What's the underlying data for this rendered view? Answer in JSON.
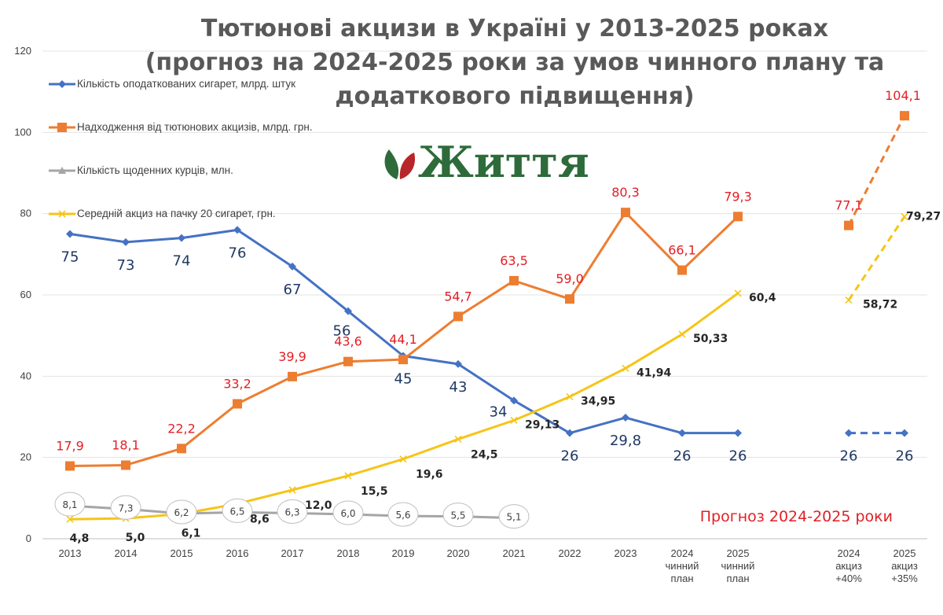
{
  "chart_data": {
    "type": "line",
    "title": [
      "Тютюнові акцизи в Україні у 2013-2025 роках",
      "(прогноз на 2024-2025 роки за умов чинного плану та",
      "додаткового підвищення)"
    ],
    "categories": [
      [
        "2013"
      ],
      [
        "2014"
      ],
      [
        "2015"
      ],
      [
        "2016"
      ],
      [
        "2017"
      ],
      [
        "2018"
      ],
      [
        "2019"
      ],
      [
        "2020"
      ],
      [
        "2021"
      ],
      [
        "2022"
      ],
      [
        "2023"
      ],
      [
        "2024",
        "чинний",
        "план"
      ],
      [
        "2025",
        "чинний",
        "план"
      ],
      [
        "2024",
        "акциз",
        "+40%"
      ],
      [
        "2025",
        "акциз",
        "+35%"
      ]
    ],
    "ylim": [
      0,
      120
    ],
    "yticks": [
      0,
      20,
      40,
      60,
      80,
      100,
      120
    ],
    "grid": true,
    "legend_position": "top-left",
    "series": [
      {
        "name": "Кількість оподаткованих сигарет, млрд. штук",
        "color": "#4472c4",
        "marker": "diamond",
        "label_style": "blue",
        "values": [
          75,
          73,
          74,
          76,
          67,
          56,
          45,
          43,
          34,
          26,
          29.8,
          26,
          26,
          null,
          null
        ],
        "labels": [
          "75",
          "73",
          "74",
          "76",
          "67",
          "56",
          "45",
          "43",
          "34",
          "26",
          "29,8",
          "26",
          "26",
          "",
          ""
        ],
        "forecast_values": [
          null,
          null,
          null,
          null,
          null,
          null,
          null,
          null,
          null,
          null,
          null,
          null,
          null,
          26,
          26
        ],
        "forecast_labels": [
          "",
          "",
          "",
          "",
          "",
          "",
          "",
          "",
          "",
          "",
          "",
          "",
          "",
          "26",
          "26"
        ]
      },
      {
        "name": "Надходження від тютюнових акцизів, млрд. грн.",
        "color": "#ed7d31",
        "marker": "square",
        "label_style": "red",
        "values": [
          17.9,
          18.1,
          22.2,
          33.2,
          39.9,
          43.6,
          44.1,
          54.7,
          63.5,
          59.0,
          80.3,
          66.1,
          79.3,
          null,
          null
        ],
        "labels": [
          "17,9",
          "18,1",
          "22,2",
          "33,2",
          "39,9",
          "43,6",
          "44,1",
          "54,7",
          "63,5",
          "59,0",
          "80,3",
          "66,1",
          "79,3",
          "",
          ""
        ],
        "forecast_values": [
          null,
          null,
          null,
          null,
          null,
          null,
          null,
          null,
          null,
          null,
          null,
          null,
          null,
          77.1,
          104.1
        ],
        "forecast_labels": [
          "",
          "",
          "",
          "",
          "",
          "",
          "",
          "",
          "",
          "",
          "",
          "",
          "",
          "77,1",
          "104,1"
        ]
      },
      {
        "name": "Кількість щоденних курців, млн.",
        "color": "#a5a5a5",
        "marker": "triangle",
        "label_style": "gray",
        "values": [
          8.1,
          7.3,
          6.2,
          6.5,
          6.3,
          6.0,
          5.6,
          5.5,
          5.1,
          null,
          null,
          null,
          null,
          null,
          null
        ],
        "labels": [
          "8,1",
          "7,3",
          "6,2",
          "6,5",
          "6,3",
          "6,0",
          "5,6",
          "5,5",
          "5,1",
          "",
          "",
          "",
          "",
          "",
          ""
        ],
        "forecast_values": null,
        "forecast_labels": null
      },
      {
        "name": "Середній акциз на пачку 20 сигарет, грн.",
        "color": "#f5c518",
        "marker": "x",
        "label_style": "dark",
        "values": [
          4.8,
          5.0,
          6.1,
          8.6,
          12.0,
          15.5,
          19.6,
          24.5,
          29.13,
          34.95,
          41.94,
          50.33,
          60.4,
          null,
          null
        ],
        "labels": [
          "4,8",
          "5,0",
          "6,1",
          "8,6",
          "12,0",
          "15,5",
          "19,6",
          "24,5",
          "29,13",
          "34,95",
          "41,94",
          "50,33",
          "60,4",
          "",
          ""
        ],
        "forecast_values": [
          null,
          null,
          null,
          null,
          null,
          null,
          null,
          null,
          null,
          null,
          null,
          null,
          null,
          58.72,
          79.27
        ],
        "forecast_labels": [
          "",
          "",
          "",
          "",
          "",
          "",
          "",
          "",
          "",
          "",
          "",
          "",
          "",
          "58,72",
          "79,27"
        ]
      }
    ],
    "annotations": {
      "forecast_note": "Прогноз 2024-2025 роки",
      "logo_text": "Життя"
    }
  }
}
